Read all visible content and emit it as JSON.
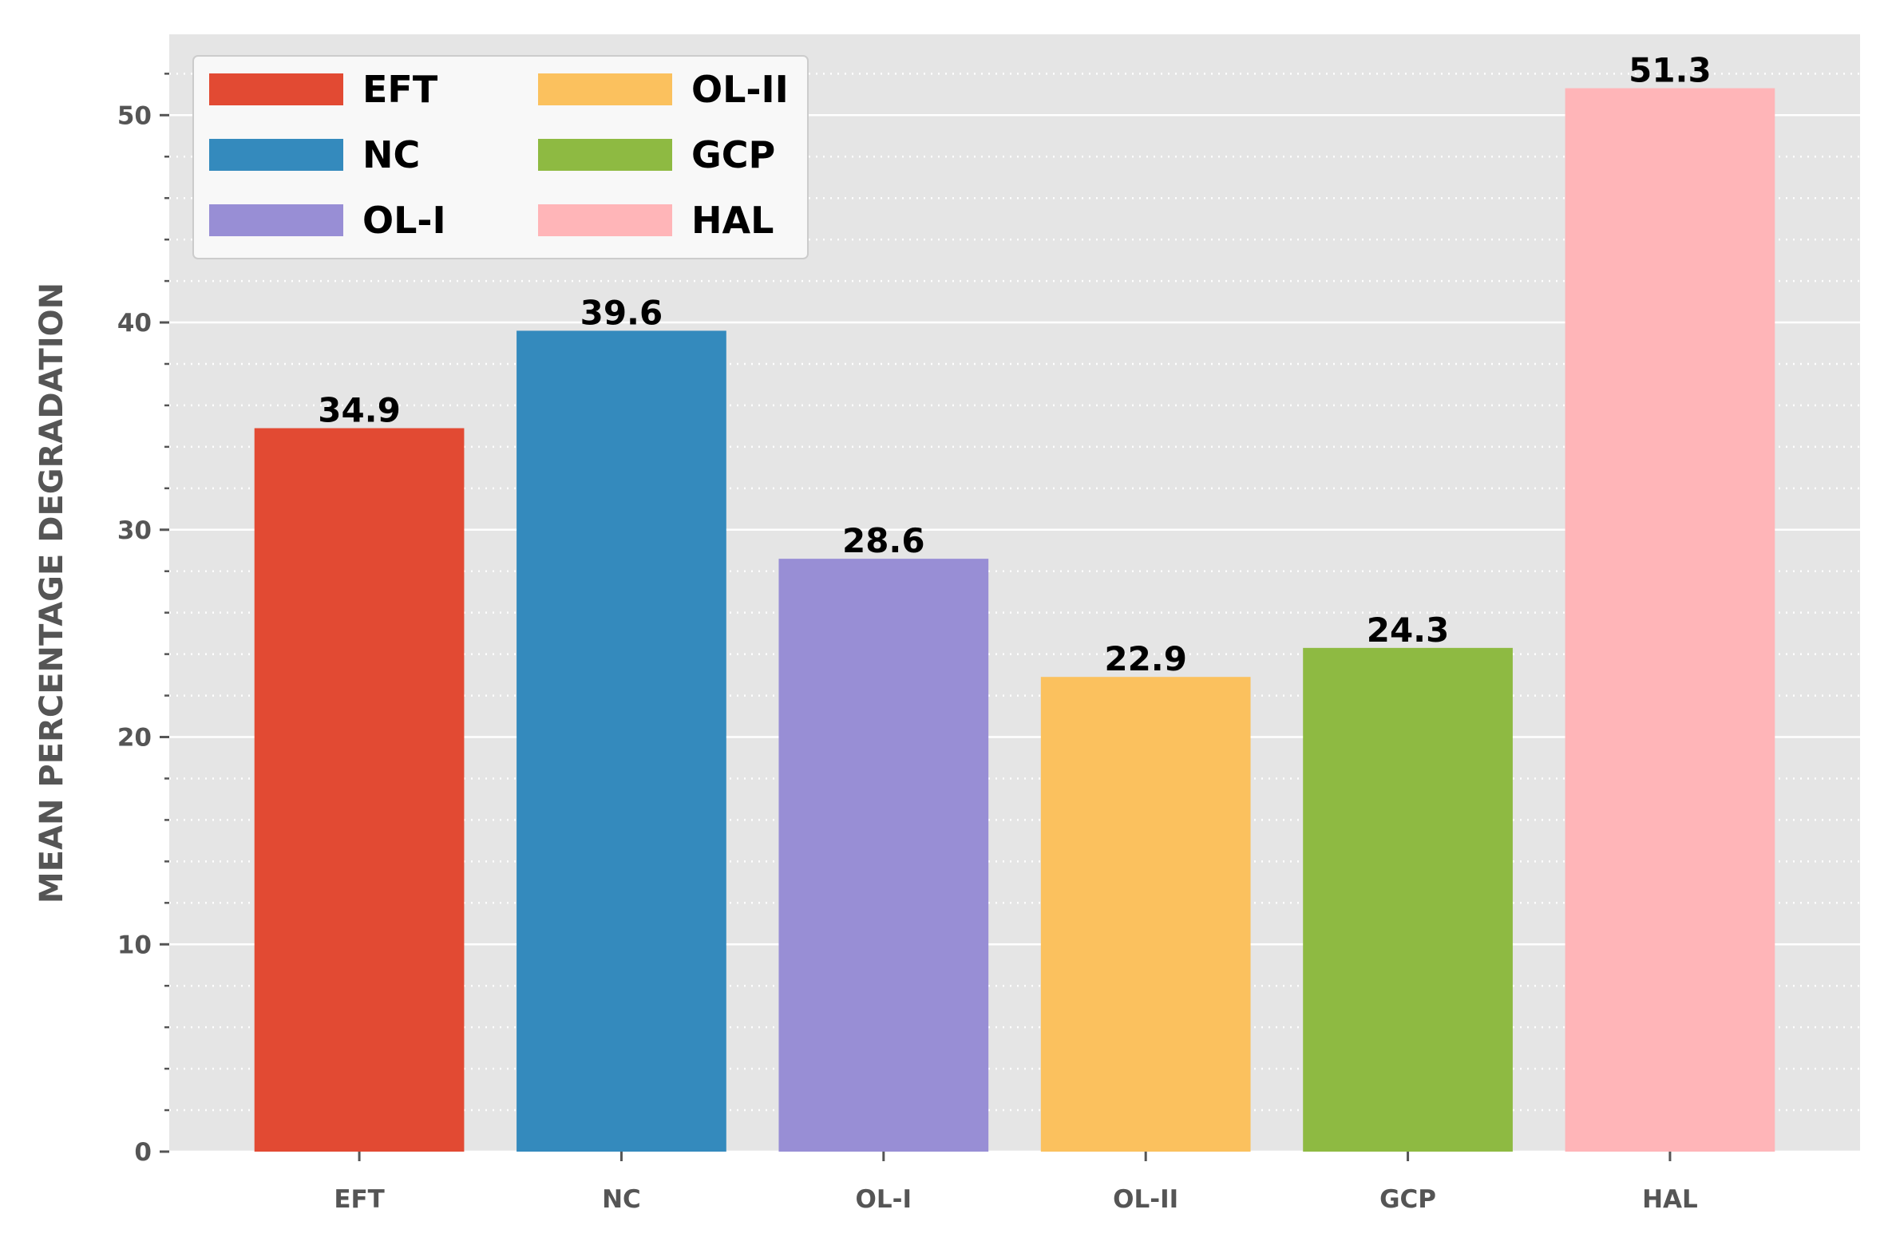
{
  "chart_data": {
    "type": "bar",
    "categories": [
      "EFT",
      "NC",
      "OL-I",
      "OL-II",
      "GCP",
      "HAL"
    ],
    "values": [
      34.9,
      39.6,
      28.6,
      22.9,
      24.3,
      51.3
    ],
    "value_labels": [
      "34.9",
      "39.6",
      "28.6",
      "22.9",
      "24.3",
      "51.3"
    ],
    "colors": [
      "#E24A33",
      "#348ABD",
      "#988ED5",
      "#FBC15E",
      "#8EBA42",
      "#FFB5B8"
    ],
    "legend": [
      "EFT",
      "NC",
      "OL-I",
      "OL-II",
      "GCP",
      "HAL"
    ],
    "legend_placement": "top-left",
    "title": "",
    "xlabel": "",
    "ylabel": "MEAN PERCENTAGE DEGRADATION",
    "ylim": [
      0,
      53.9
    ],
    "yticks": [
      0,
      10,
      20,
      30,
      40,
      50
    ],
    "ytick_labels": [
      "0",
      "10",
      "20",
      "30",
      "40",
      "50"
    ],
    "minor_ytick_step": 2,
    "grid": true,
    "background": "#E5E5E5"
  }
}
